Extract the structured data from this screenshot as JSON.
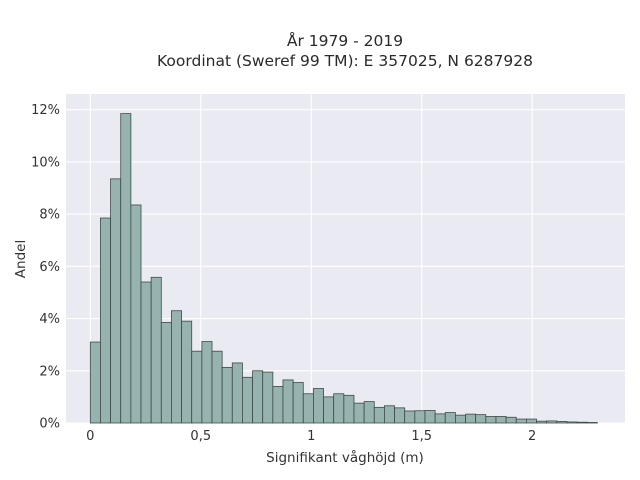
{
  "chart_data": {
    "type": "bar",
    "title": "År 1979 - 2019",
    "subtitle": "Koordinat (Sweref 99 TM): E 357025, N 6287928",
    "xlabel": "Signifikant våghöjd (m)",
    "ylabel": "Andel",
    "xlim": [
      -0.11,
      2.42
    ],
    "ylim": [
      0,
      12.6
    ],
    "x_ticks": [
      0,
      0.5,
      1,
      1.5,
      2
    ],
    "x_tick_labels": [
      "0",
      "0,5",
      "1",
      "1,5",
      "2"
    ],
    "y_ticks": [
      0,
      2,
      4,
      6,
      8,
      10,
      12
    ],
    "y_tick_labels": [
      "0%",
      "2%",
      "4%",
      "6%",
      "8%",
      "10%",
      "12%"
    ],
    "grid": true,
    "bin_width": 0.0459,
    "bin_start": 0,
    "values": [
      3.1,
      7.85,
      9.35,
      11.85,
      8.35,
      5.4,
      5.58,
      3.85,
      4.3,
      3.9,
      2.75,
      3.12,
      2.75,
      2.13,
      2.3,
      1.75,
      2.0,
      1.95,
      1.4,
      1.65,
      1.55,
      1.12,
      1.32,
      1.0,
      1.12,
      1.06,
      0.76,
      0.82,
      0.6,
      0.66,
      0.58,
      0.46,
      0.47,
      0.48,
      0.35,
      0.4,
      0.3,
      0.34,
      0.32,
      0.25,
      0.25,
      0.22,
      0.15,
      0.15,
      0.07,
      0.08,
      0.06,
      0.04,
      0.03,
      0.02
    ]
  }
}
